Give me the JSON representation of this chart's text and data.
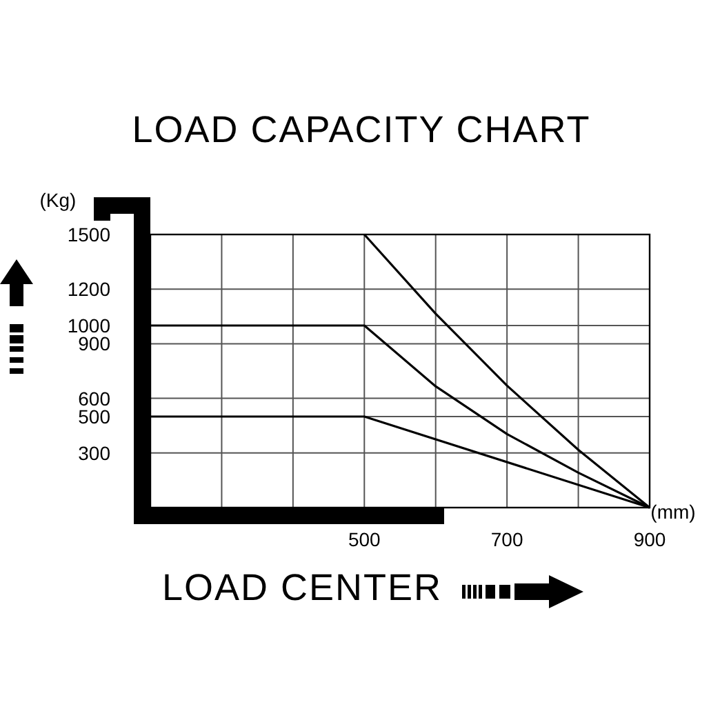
{
  "chart_data": {
    "type": "line",
    "title": "LOAD CAPACITY CHART",
    "xlabel": "LOAD CENTER",
    "ylabel": "(Kg)",
    "annotations": [
      "(mm)"
    ],
    "xlim": [
      200,
      900
    ],
    "ylim": [
      0,
      1500
    ],
    "xticks": [
      {
        "value": 200,
        "label": null
      },
      {
        "value": 300,
        "label": null
      },
      {
        "value": 400,
        "label": null
      },
      500,
      {
        "value": 600,
        "label": null
      },
      700,
      {
        "value": 800,
        "label": null
      },
      900
    ],
    "yticks": [
      300,
      500,
      600,
      900,
      1000,
      1200,
      1500
    ],
    "grid": true,
    "line_style": "solid",
    "marker": "none",
    "series": [
      {
        "color": "#000000",
        "x": [
          500,
          600,
          700,
          800,
          900
        ],
        "values": [
          1500,
          1065,
          670,
          317,
          0
        ]
      },
      {
        "color": "#000000",
        "x": [
          200,
          500,
          600,
          700,
          800,
          900
        ],
        "values": [
          1000,
          1000,
          666,
          404,
          192,
          0
        ]
      },
      {
        "color": "#000000",
        "x": [
          200,
          500,
          900
        ],
        "values": [
          500,
          500,
          0
        ]
      }
    ]
  }
}
